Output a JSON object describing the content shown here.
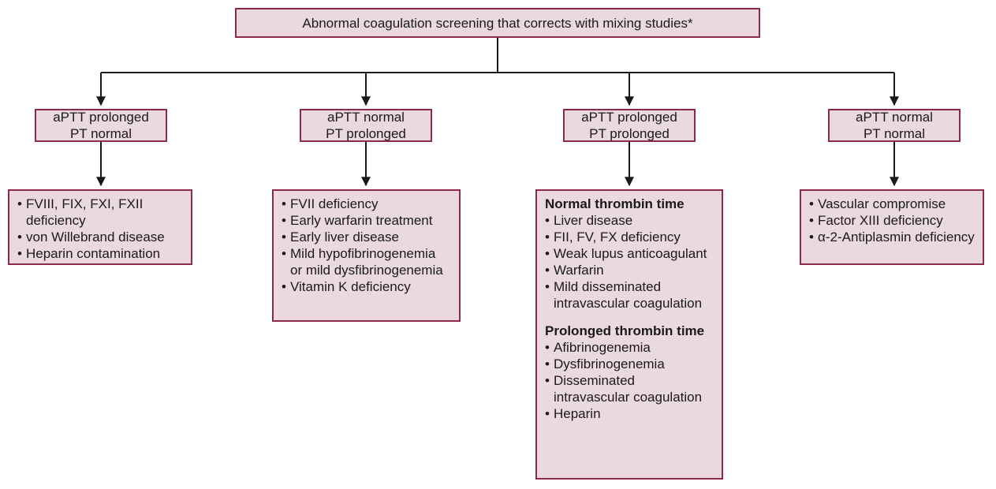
{
  "top": {
    "label": "Abnormal coagulation screening that corrects with mixing studies*"
  },
  "columns": [
    {
      "condition": [
        "aPTT prolonged",
        "PT normal"
      ],
      "causes": [
        "FVIII, FIX, FXI, FXII deficiency",
        "von Willebrand disease",
        "Heparin contamination"
      ]
    },
    {
      "condition": [
        "aPTT normal",
        "PT prolonged"
      ],
      "causes": [
        "FVII deficiency",
        "Early warfarin treatment",
        "Early liver disease",
        "Mild hypofibrinogenemia or mild dysfibrinogenemia",
        "Vitamin K deficiency"
      ]
    },
    {
      "condition": [
        "aPTT prolonged",
        "PT prolonged"
      ],
      "groups": [
        {
          "heading": "Normal thrombin time",
          "items": [
            "Liver disease",
            "FII, FV, FX deficiency",
            "Weak lupus anticoagulant",
            "Warfarin",
            "Mild disseminated intravascular coagulation"
          ]
        },
        {
          "heading": "Prolonged thrombin time",
          "items": [
            "Afibrinogenemia",
            "Dysfibrinogenemia",
            "Disseminated intravascular coagulation",
            "Heparin"
          ]
        }
      ]
    },
    {
      "condition": [
        "aPTT normal",
        "PT normal"
      ],
      "causes": [
        "Vascular compromise",
        "Factor XIII deficiency",
        "α-2-Antiplasmin deficiency"
      ]
    }
  ]
}
